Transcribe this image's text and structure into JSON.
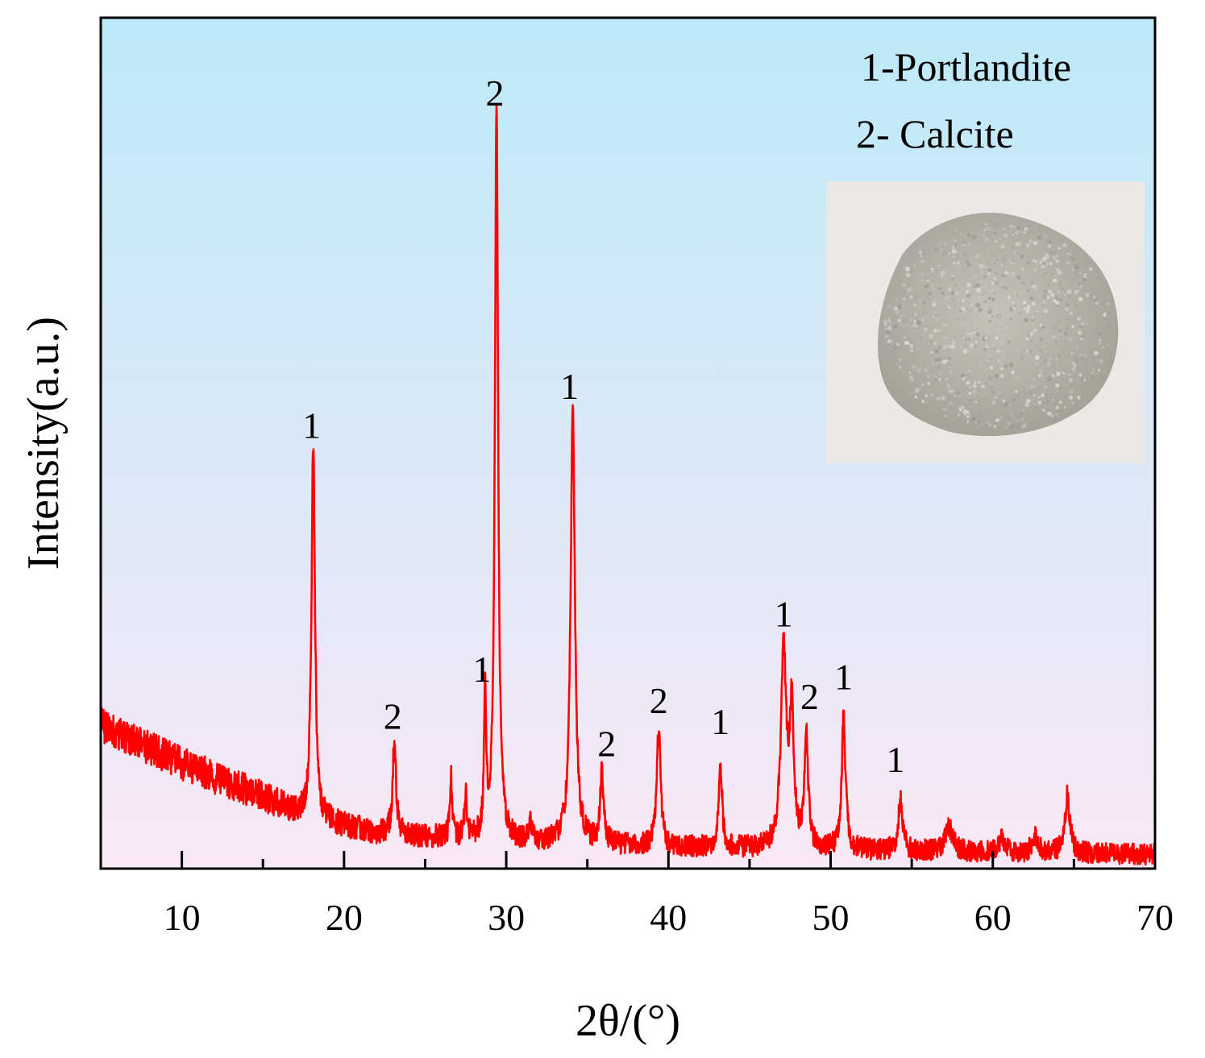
{
  "chart_data": {
    "type": "line",
    "title": "",
    "xlabel": "2θ/(°)",
    "ylabel": "Intensity(a.u.)",
    "xlim": [
      5,
      70
    ],
    "ylim": [
      0,
      1000
    ],
    "xticks": [
      10,
      20,
      30,
      40,
      50,
      60,
      70
    ],
    "xtick_labels": [
      "10",
      "20",
      "30",
      "40",
      "50",
      "60",
      "70"
    ],
    "minor_xticks": [
      5,
      15,
      25,
      35,
      45,
      55,
      65
    ],
    "grid": false,
    "background_gradient": [
      "#bde9f8",
      "#f9e8f5"
    ],
    "line_color": "#ff0000",
    "legend": [
      "1-Portlandite",
      "2- Calcite"
    ],
    "inset_photo": "powder-sample-photo",
    "baseline": {
      "points": [
        [
          5,
          180
        ],
        [
          10,
          130
        ],
        [
          15,
          88
        ],
        [
          18,
          60
        ],
        [
          22,
          42
        ],
        [
          30,
          30
        ],
        [
          40,
          24
        ],
        [
          50,
          20
        ],
        [
          60,
          17
        ],
        [
          70,
          15
        ]
      ],
      "noise": 22
    },
    "peaks": [
      {
        "x": 18.1,
        "height": 480,
        "width": 0.13,
        "label": "1",
        "label_x": 18.0,
        "label_y": 545
      },
      {
        "x": 23.1,
        "height": 120,
        "width": 0.12,
        "label": "2",
        "label_x": 23.0,
        "label_y": 175
      },
      {
        "x": 26.6,
        "height": 80,
        "width": 0.08,
        "label": "",
        "label_x": 0,
        "label_y": 0
      },
      {
        "x": 27.5,
        "height": 55,
        "width": 0.09,
        "label": "",
        "label_x": 0,
        "label_y": 0
      },
      {
        "x": 28.7,
        "height": 180,
        "width": 0.08,
        "label": "1",
        "label_x": 28.5,
        "label_y": 235
      },
      {
        "x": 29.4,
        "height": 935,
        "width": 0.12,
        "label": "2",
        "label_x": 29.3,
        "label_y": 968
      },
      {
        "x": 31.5,
        "height": 25,
        "width": 0.1,
        "label": "",
        "label_x": 0,
        "label_y": 0
      },
      {
        "x": 34.1,
        "height": 550,
        "width": 0.16,
        "label": "1",
        "label_x": 33.9,
        "label_y": 595
      },
      {
        "x": 35.9,
        "height": 90,
        "width": 0.13,
        "label": "2",
        "label_x": 36.2,
        "label_y": 140
      },
      {
        "x": 39.4,
        "height": 150,
        "width": 0.14,
        "label": "2",
        "label_x": 39.4,
        "label_y": 195
      },
      {
        "x": 43.2,
        "height": 110,
        "width": 0.13,
        "label": "1",
        "label_x": 43.2,
        "label_y": 168
      },
      {
        "x": 47.1,
        "height": 250,
        "width": 0.2,
        "label": "1",
        "label_x": 47.1,
        "label_y": 305
      },
      {
        "x": 47.6,
        "height": 170,
        "width": 0.15,
        "label": "",
        "label_x": 0,
        "label_y": 0
      },
      {
        "x": 48.5,
        "height": 150,
        "width": 0.13,
        "label": "2",
        "label_x": 48.7,
        "label_y": 200
      },
      {
        "x": 50.8,
        "height": 170,
        "width": 0.14,
        "label": "1",
        "label_x": 50.8,
        "label_y": 225
      },
      {
        "x": 54.3,
        "height": 65,
        "width": 0.16,
        "label": "1",
        "label_x": 54.0,
        "label_y": 120
      },
      {
        "x": 57.3,
        "height": 30,
        "width": 0.3,
        "label": "",
        "label_x": 0,
        "label_y": 0
      },
      {
        "x": 60.6,
        "height": 18,
        "width": 0.2,
        "label": "",
        "label_x": 0,
        "label_y": 0
      },
      {
        "x": 62.6,
        "height": 22,
        "width": 0.2,
        "label": "",
        "label_x": 0,
        "label_y": 0
      },
      {
        "x": 64.6,
        "height": 75,
        "width": 0.18,
        "label": "",
        "label_x": 0,
        "label_y": 0
      }
    ]
  }
}
